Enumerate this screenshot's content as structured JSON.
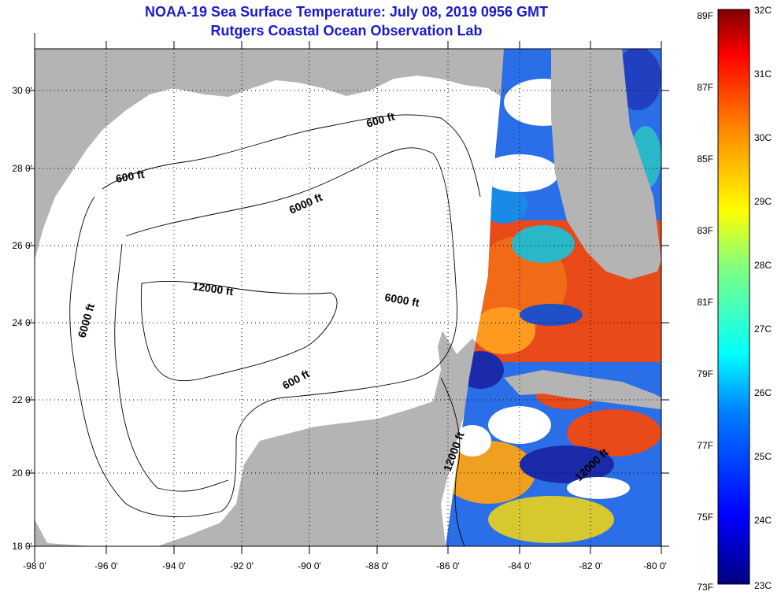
{
  "title": "NOAA-19 Sea Surface Temperature:  July 08, 2019 0956 GMT",
  "subtitle": "Rutgers Coastal Ocean Observation Lab",
  "lat_labels": [
    "30 0'",
    "28 0'",
    "26 0'",
    "24 0'",
    "22 0'",
    "20 0'",
    "18 0'"
  ],
  "lon_labels": [
    "-98 0'",
    "-96 0'",
    "-94 0'",
    "-92 0'",
    "-90 0'",
    "-88 0'",
    "-86 0'",
    "-84 0'",
    "-82 0'",
    "-80 0'"
  ],
  "contour_labels": [
    "600 ft",
    "600 ft",
    "6000 ft",
    "12000 ft",
    "6000 ft",
    "6000 ft",
    "600 ft",
    "12000 ft",
    "12000 ft"
  ],
  "colorbar": {
    "fahrenheit": [
      "89F",
      "87F",
      "85F",
      "83F",
      "81F",
      "79F",
      "77F",
      "75F",
      "73F"
    ],
    "celsius": [
      "32C",
      "31C",
      "30C",
      "29C",
      "28C",
      "27C",
      "26C",
      "25C",
      "24C",
      "23C"
    ]
  },
  "colors": {
    "title": "#1a1acc",
    "land": "#b4b4b4",
    "water": "#ffffff"
  }
}
